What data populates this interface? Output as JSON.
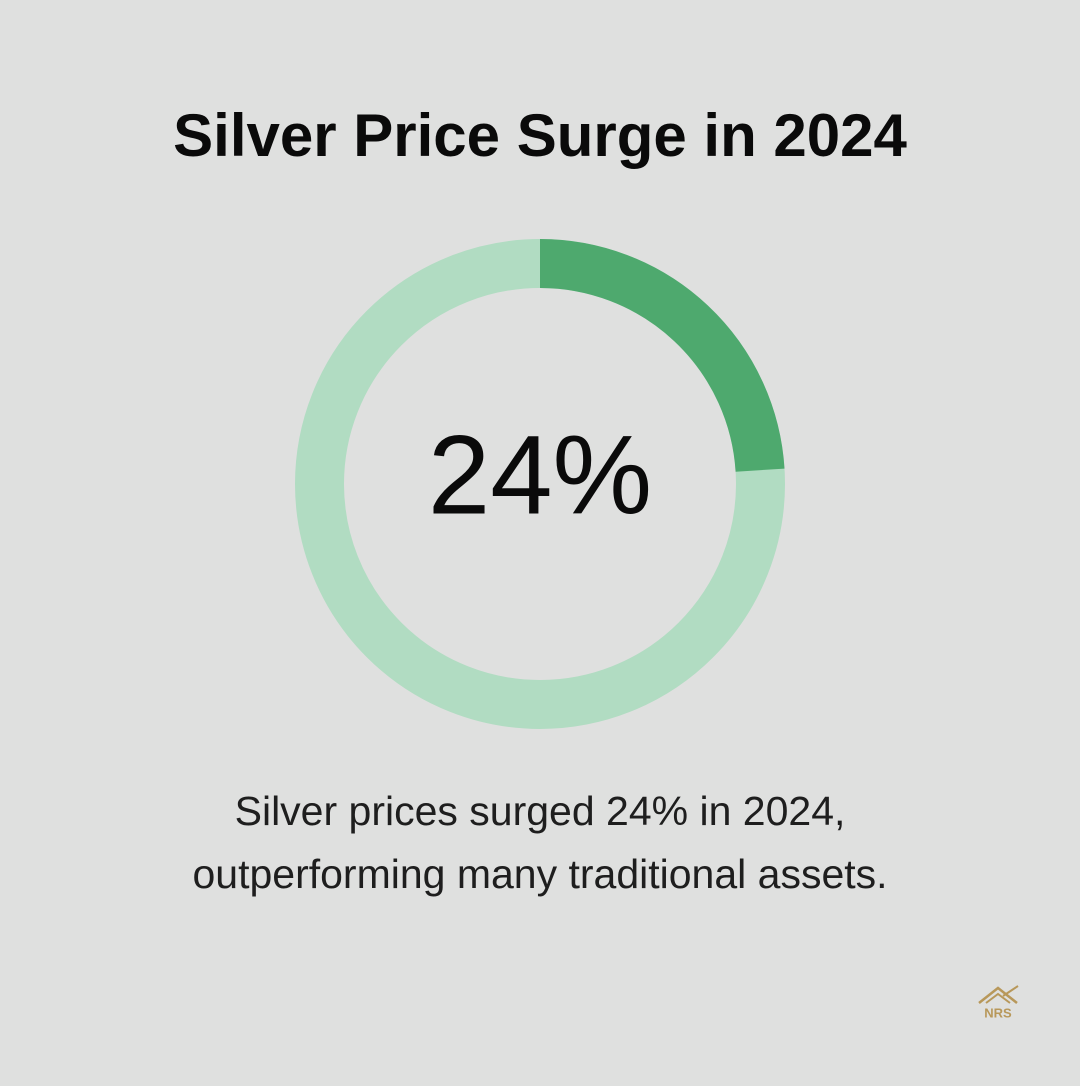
{
  "chart_data": {
    "type": "donut",
    "title": "Silver Price Surge in 2024",
    "values": [
      24
    ],
    "value_labels": [
      "24%"
    ],
    "color": "#4ea96e",
    "track_color": "#b1dcc2",
    "description": [
      "Silver prices surged 24% in 2024,",
      "outperforming many traditional assets."
    ],
    "logo": "NRS"
  }
}
